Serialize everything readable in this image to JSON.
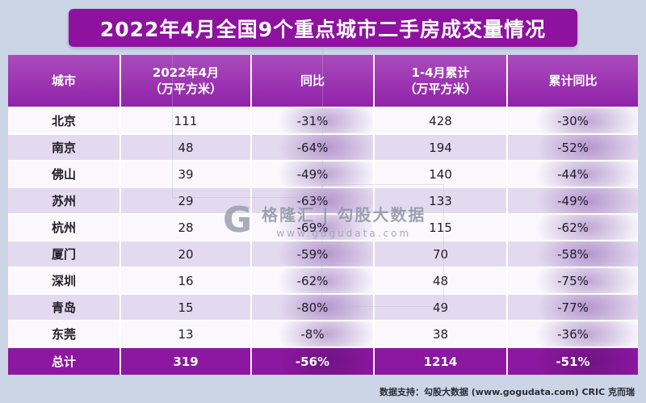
{
  "page": {
    "title": "2022年4月全国9个重点城市二手房成交量情况",
    "footer": "数据支持：勾股大数据 (www.gogudata.com)  CRIC 克而瑞"
  },
  "watermark": {
    "logo": "G",
    "title": "格隆汇 | 勾股大数据",
    "url": "www.gogudata.com"
  },
  "table": {
    "headers": [
      {
        "line1": "城市",
        "line2": ""
      },
      {
        "line1": "2022年4月",
        "line2": "（万平方米）"
      },
      {
        "line1": "同比",
        "line2": ""
      },
      {
        "line1": "1-4月累计",
        "line2": "（万平方米）"
      },
      {
        "line1": "累计同比",
        "line2": ""
      }
    ]
  },
  "chart_data": {
    "type": "table",
    "title": "2022年4月全国9个重点城市二手房成交量情况",
    "columns": [
      "城市",
      "2022年4月（万平方米）",
      "同比",
      "1-4月累计（万平方米）",
      "累计同比"
    ],
    "rows": [
      {
        "city": "北京",
        "apr": "111",
        "yoy": "-31%",
        "cum": "428",
        "cum_yoy": "-30%"
      },
      {
        "city": "南京",
        "apr": "48",
        "yoy": "-64%",
        "cum": "194",
        "cum_yoy": "-52%"
      },
      {
        "city": "佛山",
        "apr": "39",
        "yoy": "-49%",
        "cum": "140",
        "cum_yoy": "-44%"
      },
      {
        "city": "苏州",
        "apr": "29",
        "yoy": "-63%",
        "cum": "133",
        "cum_yoy": "-49%"
      },
      {
        "city": "杭州",
        "apr": "28",
        "yoy": "-69%",
        "cum": "115",
        "cum_yoy": "-62%"
      },
      {
        "city": "厦门",
        "apr": "20",
        "yoy": "-59%",
        "cum": "70",
        "cum_yoy": "-58%"
      },
      {
        "city": "深圳",
        "apr": "16",
        "yoy": "-62%",
        "cum": "48",
        "cum_yoy": "-75%"
      },
      {
        "city": "青岛",
        "apr": "15",
        "yoy": "-80%",
        "cum": "49",
        "cum_yoy": "-77%"
      },
      {
        "city": "东莞",
        "apr": "13",
        "yoy": "-8%",
        "cum": "38",
        "cum_yoy": "-36%"
      },
      {
        "city": "总计",
        "apr": "319",
        "yoy": "-56%",
        "cum": "1214",
        "cum_yoy": "-51%"
      }
    ]
  }
}
